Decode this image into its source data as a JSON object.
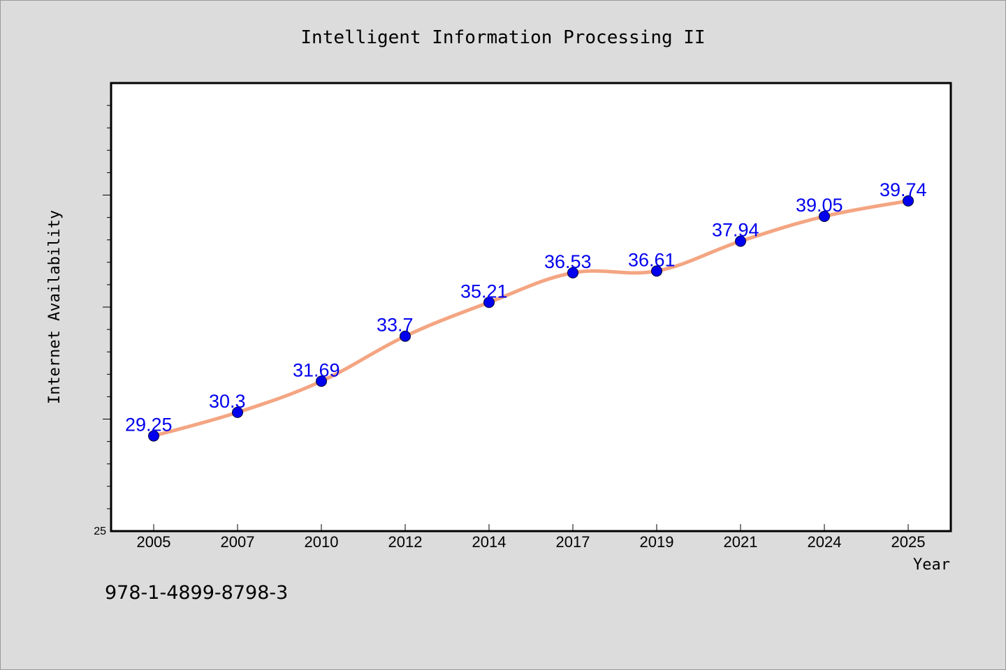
{
  "chart_data": {
    "type": "line",
    "title": "Intelligent Information Processing II",
    "xlabel": "Year",
    "ylabel": "Internet Availability",
    "categories": [
      "2005",
      "2007",
      "2010",
      "2012",
      "2014",
      "2017",
      "2019",
      "2021",
      "2024",
      "2025"
    ],
    "series": [
      {
        "values": [
          29.25,
          30.3,
          31.69,
          33.7,
          35.21,
          36.53,
          36.61,
          37.94,
          39.05,
          39.74
        ]
      }
    ],
    "y_tick_labels": [
      "25"
    ],
    "ylim": [
      25,
      45
    ],
    "grid": false,
    "line_color": "#f4a582",
    "marker_color": "#0000ee",
    "label_color": "#0000ee"
  },
  "footer": {
    "code": "978-1-4899-8798-3"
  }
}
